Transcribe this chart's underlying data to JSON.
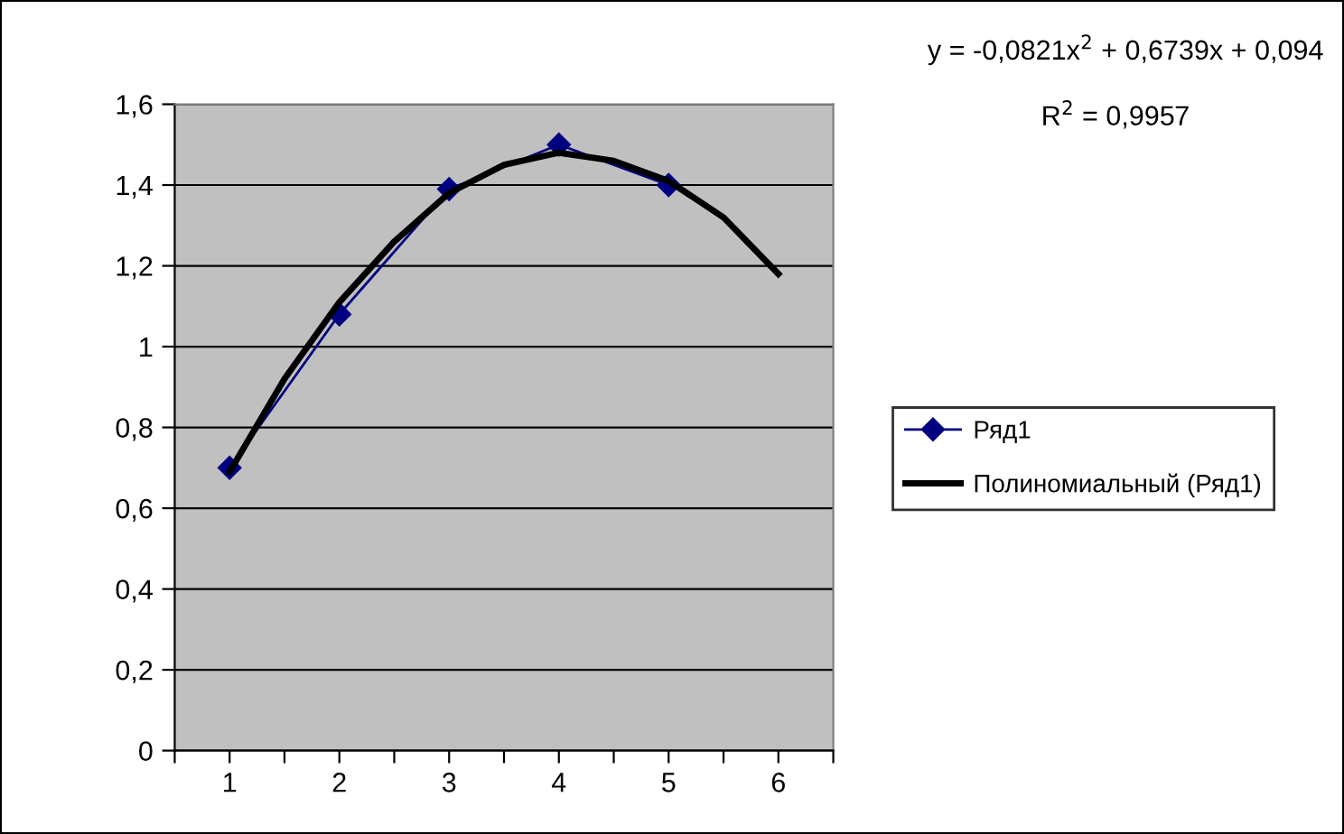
{
  "chart_data": {
    "type": "line",
    "x": [
      1,
      2,
      3,
      4,
      5
    ],
    "series": [
      {
        "name": "Ряд1",
        "color": "#000080",
        "values": [
          0.7,
          1.08,
          1.39,
          1.5,
          1.4
        ],
        "marker": "diamond"
      },
      {
        "name": "Полиномиальный (Ряд1)",
        "type": "line",
        "color": "#000000",
        "marker": "none",
        "x": [
          1,
          1.5,
          2,
          2.5,
          3,
          3.5,
          4,
          4.5,
          5,
          5.5,
          6
        ],
        "values": [
          0.69,
          0.92,
          1.11,
          1.26,
          1.38,
          1.45,
          1.48,
          1.46,
          1.41,
          1.32,
          1.18
        ]
      }
    ],
    "xlim": [
      0.5,
      6.5
    ],
    "xticks": [
      {
        "value": 0.5,
        "label": null
      },
      1,
      {
        "value": 1.5,
        "label": null
      },
      2,
      {
        "value": 2.5,
        "label": null
      },
      3,
      {
        "value": 3.5,
        "label": null
      },
      4,
      {
        "value": 4.5,
        "label": null
      },
      5,
      {
        "value": 5.5,
        "label": null
      },
      6,
      {
        "value": 6.5,
        "label": null
      }
    ],
    "ylim": [
      0,
      1.6
    ],
    "yticks": [
      0,
      {
        "value": 0.2,
        "label": "0,2"
      },
      {
        "value": 0.4,
        "label": "0,4"
      },
      {
        "value": 0.6,
        "label": "0,6"
      },
      {
        "value": 0.8,
        "label": "0,8"
      },
      1,
      {
        "value": 1.2,
        "label": "1,2"
      },
      {
        "value": 1.4,
        "label": "1,4"
      },
      {
        "value": 1.6,
        "label": "1,6"
      }
    ],
    "grid": "y",
    "legend": "right",
    "line_style": "solid",
    "annotations": [
      "y = -0,0821x$^{2}$ + 0,6739x + 0,094",
      "R$^{2}$ = 0,9957"
    ]
  }
}
